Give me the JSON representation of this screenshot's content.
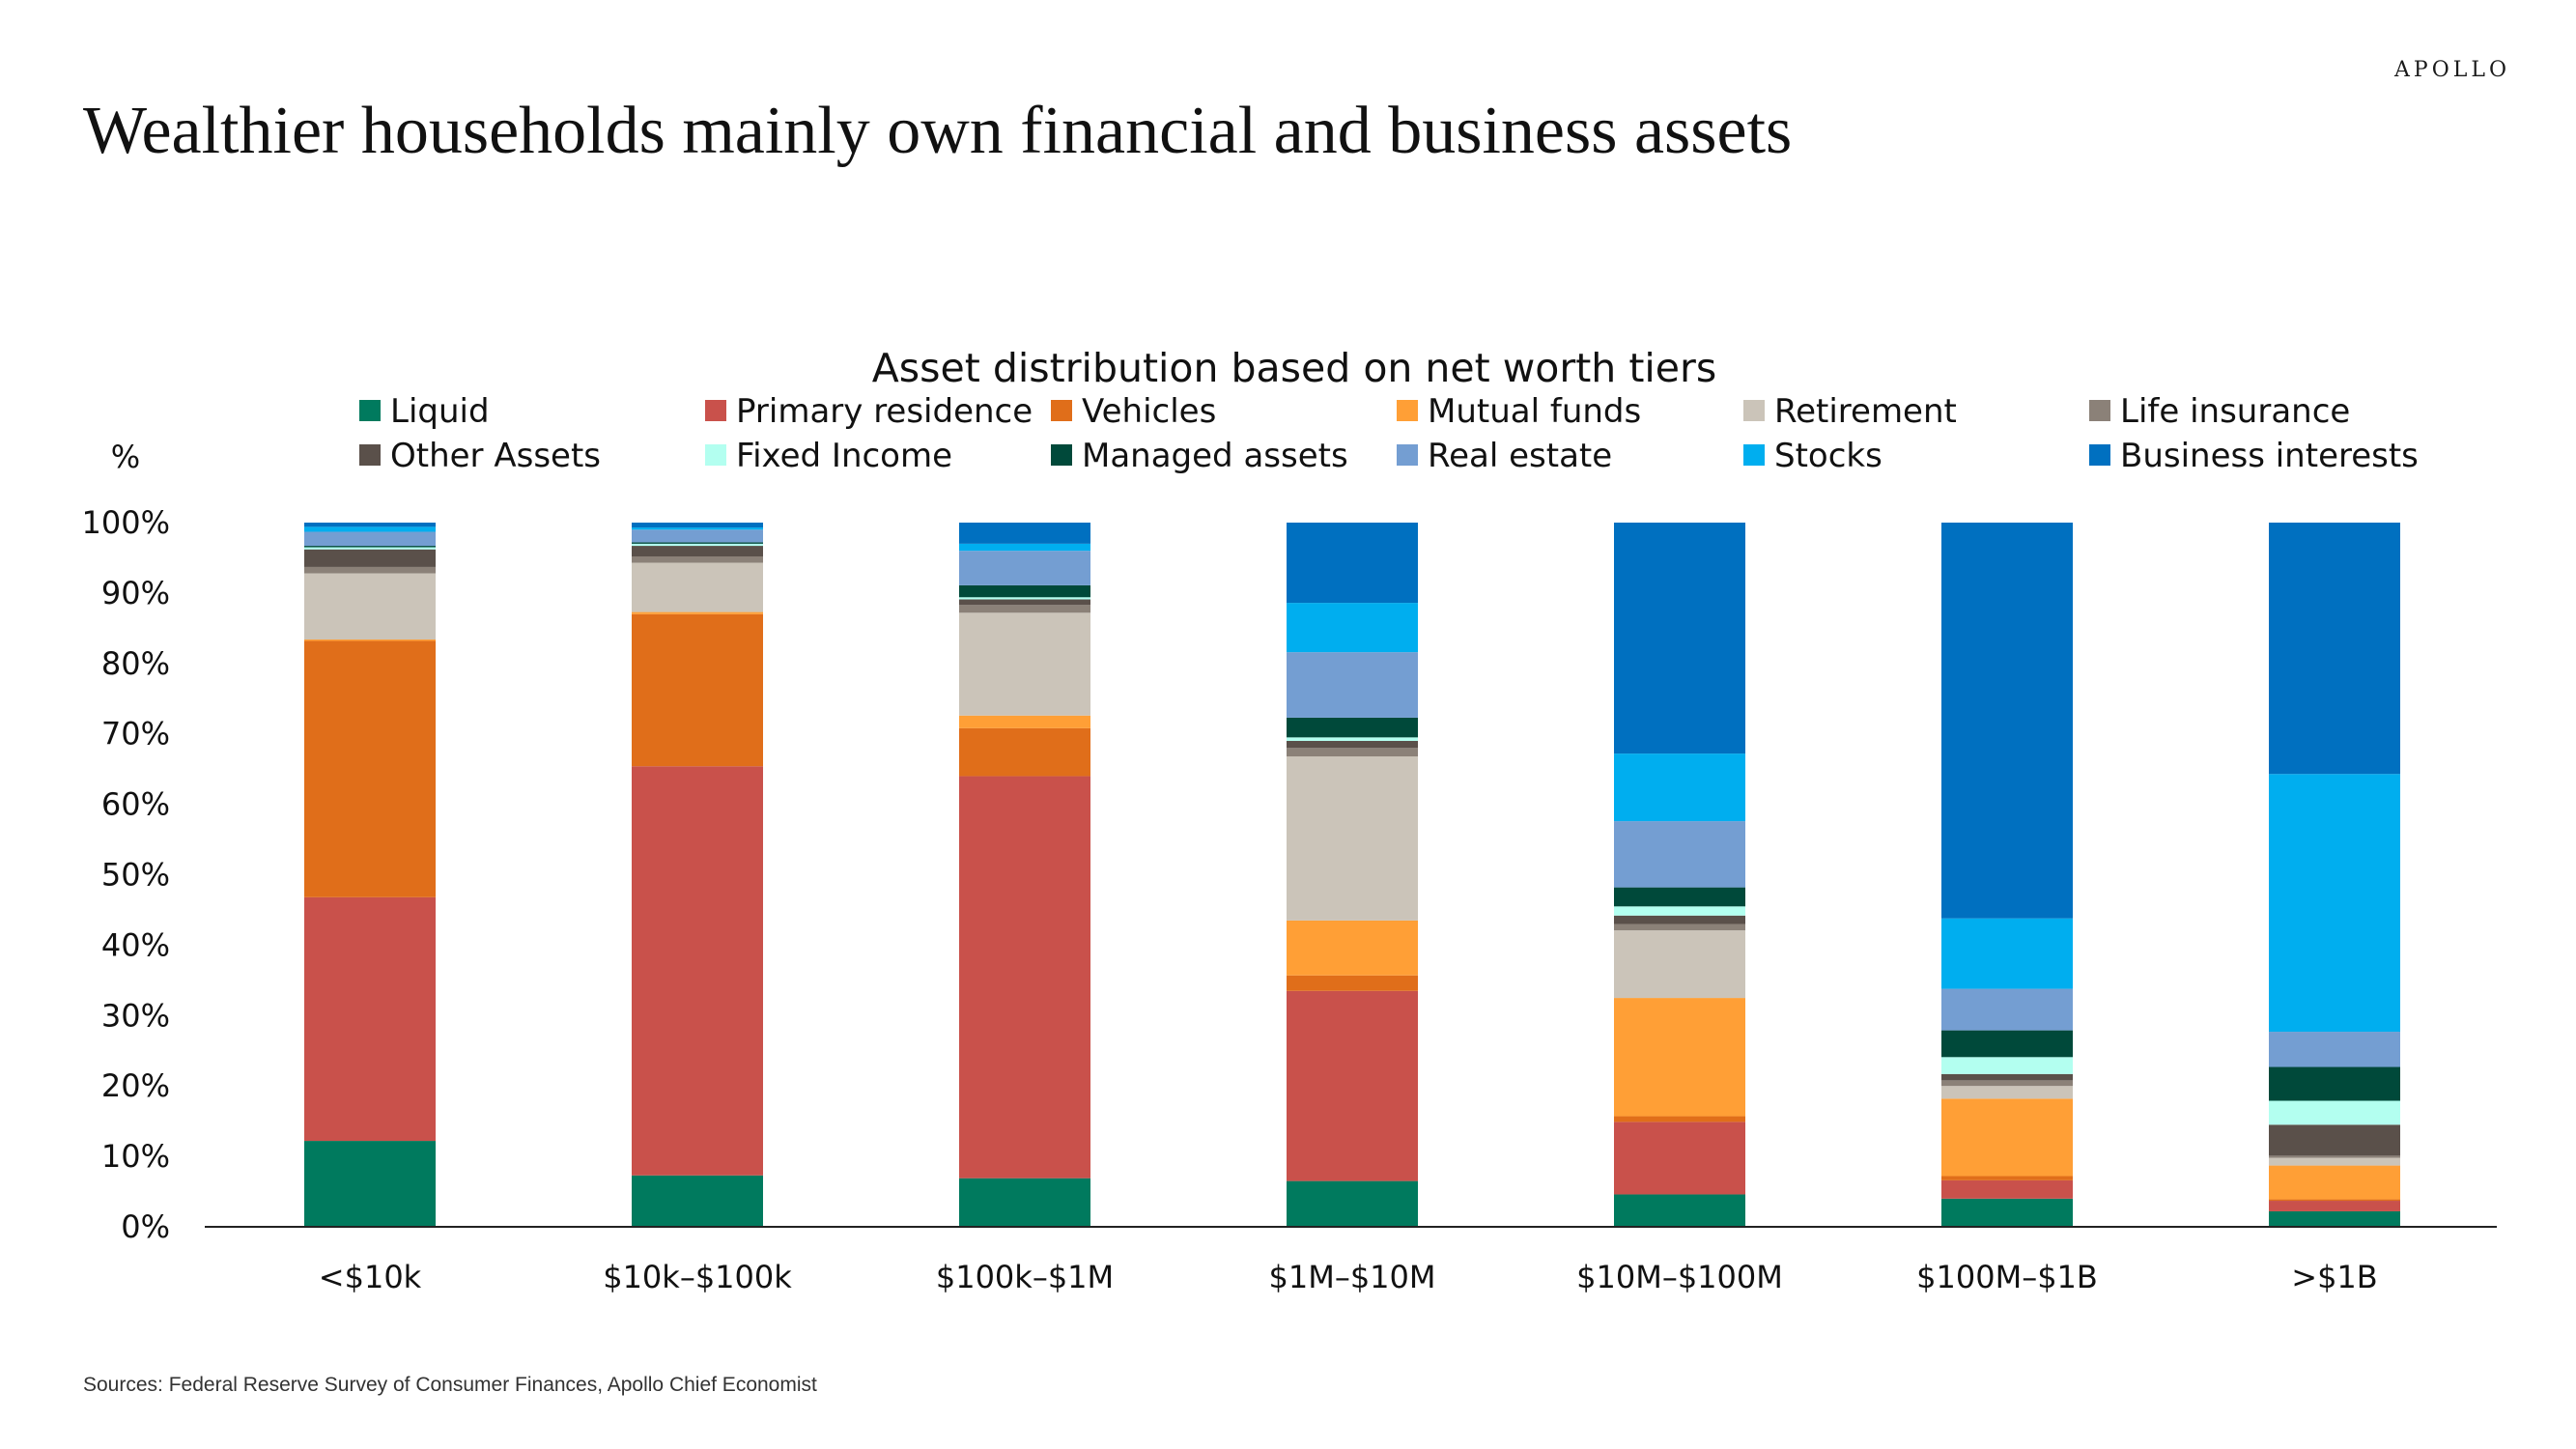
{
  "brand": "APOLLO",
  "headline": "Wealthier households mainly own financial and business assets",
  "source": "Sources: Federal Reserve Survey of Consumer Finances, Apollo Chief Economist",
  "chart_data": {
    "type": "bar",
    "stacked": true,
    "title": "Asset distribution based on net worth tiers",
    "y_unit": "%",
    "ylim": [
      0,
      100
    ],
    "yticks": [
      "0%",
      "10%",
      "20%",
      "30%",
      "40%",
      "50%",
      "60%",
      "70%",
      "80%",
      "90%",
      "100%"
    ],
    "legend_position": "top",
    "categories": [
      "<$10k",
      "$10k–$100k",
      "$100k–$1M",
      "$1M–$10M",
      "$10M–$100M",
      "$100M–$1B",
      ">$1B"
    ],
    "series": [
      {
        "name": "Liquid",
        "color": "#007A5E",
        "values": [
          12.2,
          7.3,
          6.9,
          6.5,
          4.6,
          4.0,
          2.2
        ]
      },
      {
        "name": "Primary residence",
        "color": "#C9514B",
        "values": [
          34.6,
          58.1,
          57.1,
          27.0,
          10.3,
          2.6,
          1.5
        ]
      },
      {
        "name": "Vehicles",
        "color": "#E06E1A",
        "values": [
          36.4,
          21.6,
          6.8,
          2.2,
          0.8,
          0.6,
          0.2
        ]
      },
      {
        "name": "Mutual funds",
        "color": "#FF9F36",
        "values": [
          0.2,
          0.3,
          1.8,
          7.8,
          16.8,
          11.0,
          4.8
        ]
      },
      {
        "name": "Retirement",
        "color": "#CBC4B9",
        "values": [
          9.4,
          7.0,
          14.6,
          23.3,
          9.6,
          1.8,
          1.1
        ]
      },
      {
        "name": "Life insurance",
        "color": "#8B8178",
        "values": [
          0.9,
          0.9,
          1.1,
          1.2,
          0.9,
          0.8,
          0.3
        ]
      },
      {
        "name": "Other Assets",
        "color": "#5A504A",
        "values": [
          2.5,
          1.5,
          0.8,
          1.0,
          1.2,
          0.9,
          4.4
        ]
      },
      {
        "name": "Fixed Income",
        "color": "#B3FFF0",
        "values": [
          0.3,
          0.3,
          0.3,
          0.5,
          1.3,
          2.4,
          3.4
        ]
      },
      {
        "name": "Managed assets",
        "color": "#00493A",
        "values": [
          0.2,
          0.2,
          1.7,
          2.8,
          2.7,
          3.8,
          4.8
        ]
      },
      {
        "name": "Real estate",
        "color": "#749ED2",
        "values": [
          2.0,
          1.8,
          4.9,
          9.3,
          9.4,
          5.9,
          5.0
        ]
      },
      {
        "name": "Stocks",
        "color": "#00AEEF",
        "values": [
          0.7,
          0.3,
          1.0,
          7.0,
          9.6,
          10.0,
          36.6
        ]
      },
      {
        "name": "Business interests",
        "color": "#0070C0",
        "values": [
          0.6,
          0.7,
          3.0,
          11.4,
          32.8,
          56.2,
          35.7
        ]
      }
    ]
  }
}
